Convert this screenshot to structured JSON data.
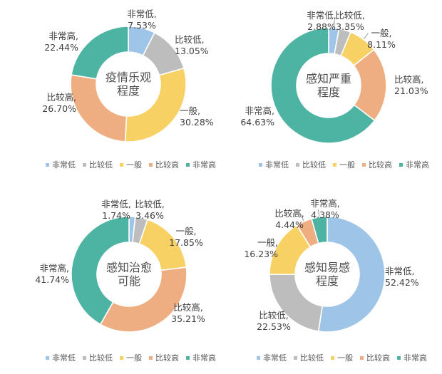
{
  "palette": {
    "very_low": "#9EC4E7",
    "fairly_low": "#BDBDBD",
    "average": "#F8D165",
    "fairly_high": "#EFAE82",
    "very_high": "#4DB3A2"
  },
  "text_colors": {
    "title": "#4d4d4d",
    "label": "#3f3f3f",
    "legend": "#595959"
  },
  "chart_data": [
    {
      "type": "pie",
      "subtype": "donut",
      "title": "疫情乐观程度",
      "title_display": "疫情乐观\n程度",
      "categories": [
        "非常低",
        "比较低",
        "一般",
        "比较高",
        "非常高"
      ],
      "values": [
        7.53,
        13.05,
        30.28,
        26.7,
        22.44
      ],
      "unit": "%",
      "labels": [
        "非常低,\n7.53%",
        "比较低,\n13.05%",
        "一般,\n30.28%",
        "比较高,\n26.70%",
        "非常高,\n22.44%"
      ],
      "colors": [
        "#9EC4E7",
        "#BDBDBD",
        "#F8D165",
        "#EFAE82",
        "#4DB3A2"
      ],
      "legend": [
        "非常低",
        "比较低",
        "一般",
        "比较高",
        "非常高"
      ],
      "legend_position": "bottom",
      "start_angle_deg": 0,
      "direction": "clockwise"
    },
    {
      "type": "pie",
      "subtype": "donut",
      "title": "感知严重程度",
      "title_display": "感知严重\n程度",
      "categories": [
        "非常低",
        "比较低",
        "一般",
        "比较高",
        "非常高"
      ],
      "values": [
        2.88,
        3.35,
        8.11,
        21.03,
        64.63
      ],
      "unit": "%",
      "labels": [
        "非常低,\n2.88%",
        "比较低,\n3.35%",
        "一般,\n8.11%",
        "比较高,\n21.03%",
        "非常高,\n64.63%"
      ],
      "colors": [
        "#9EC4E7",
        "#BDBDBD",
        "#F8D165",
        "#EFAE82",
        "#4DB3A2"
      ],
      "legend": [
        "非常低",
        "比较低",
        "一般",
        "比较高",
        "非常高"
      ],
      "legend_position": "bottom",
      "start_angle_deg": 0,
      "direction": "clockwise"
    },
    {
      "type": "pie",
      "subtype": "donut",
      "title": "感知治愈可能",
      "title_display": "感知治愈\n可能",
      "categories": [
        "非常低",
        "比较低",
        "一般",
        "比较高",
        "非常高"
      ],
      "values": [
        1.74,
        3.46,
        17.85,
        35.21,
        41.74
      ],
      "unit": "%",
      "labels": [
        "非常低,\n1.74%",
        "比较低,\n3.46%",
        "一般,\n17.85%",
        "比较高,\n35.21%",
        "非常高,\n41.74%"
      ],
      "colors": [
        "#9EC4E7",
        "#BDBDBD",
        "#F8D165",
        "#EFAE82",
        "#4DB3A2"
      ],
      "legend": [
        "非常低",
        "比较低",
        "一般",
        "比较高",
        "非常高"
      ],
      "legend_position": "bottom",
      "start_angle_deg": 0,
      "direction": "clockwise"
    },
    {
      "type": "pie",
      "subtype": "donut",
      "title": "感知易感程度",
      "title_display": "感知易感\n程度",
      "categories": [
        "非常低",
        "比较低",
        "一般",
        "比较高",
        "非常高"
      ],
      "values": [
        52.42,
        22.53,
        16.23,
        4.44,
        4.38
      ],
      "unit": "%",
      "labels": [
        "非常低,\n52.42%",
        "比较低,\n22.53%",
        "一般,\n16.23%",
        "比较高,\n4.44%",
        "非常高,\n4.38%"
      ],
      "colors": [
        "#9EC4E7",
        "#BDBDBD",
        "#F8D165",
        "#EFAE82",
        "#4DB3A2"
      ],
      "legend": [
        "非常低",
        "比较低",
        "一般",
        "比较高",
        "非常高"
      ],
      "legend_position": "bottom",
      "start_angle_deg": 0,
      "direction": "clockwise"
    }
  ]
}
